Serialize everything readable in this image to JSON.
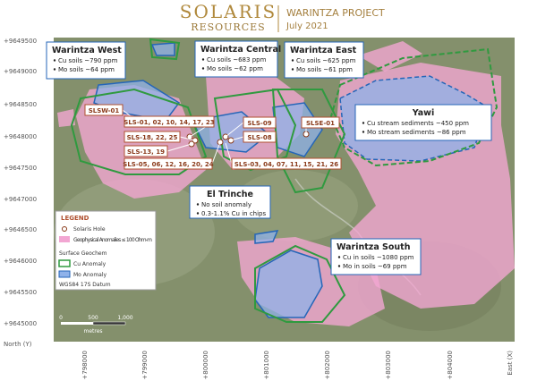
{
  "header": {
    "logo_top": "SOLARIS",
    "logo_bottom": "RESOURCES",
    "title": "WARINTZA PROJECT",
    "date": "July 2021"
  },
  "axes": {
    "y_labels": [
      "+9649500",
      "+9649000",
      "+9648500",
      "+9648000",
      "+9647500",
      "+9647000",
      "+9646500",
      "+9646000",
      "+9645500",
      "+9645000"
    ],
    "y_title": "North (Y)",
    "x_labels": [
      "+798000",
      "+799000",
      "+800000",
      "+801000",
      "+802000",
      "+803000",
      "+804000"
    ],
    "x_title": "East (X)"
  },
  "callouts": [
    {
      "title": "Warintza West",
      "lines": [
        "Cu soils ~790 ppm",
        "Mo soils ~64 ppm"
      ]
    },
    {
      "title": "Warintza Central",
      "lines": [
        "Cu soils ~683 ppm",
        "Mo soils ~62 ppm"
      ]
    },
    {
      "title": "Warintza East",
      "lines": [
        "Cu soils ~625 ppm",
        "Mo soils ~61 ppm"
      ]
    },
    {
      "title": "Yawi",
      "lines": [
        "Cu stream sediments ~450 ppm",
        "Mo stream sediments ~86 ppm"
      ]
    },
    {
      "title": "El Trinche",
      "lines": [
        "No soil anomaly",
        "0.3-1.1% Cu in chips"
      ]
    },
    {
      "title": "Warintza South",
      "lines": [
        "Cu in soils ~1080 ppm",
        "Mo in soils ~69 ppm"
      ]
    }
  ],
  "holes": [
    "SLSW-01",
    "SLS-01, 02, 10, 14, 17, 23",
    "SLS-09",
    "SLSE-01",
    "SLS-18, 22, 25",
    "SLS-08",
    "SLS-13, 19",
    "SLS-05, 06, 12, 16, 20, 24",
    "SLS-03, 04, 07, 11, 15, 21, 26"
  ],
  "legend": {
    "title": "LEGEND",
    "hole": "Solaris Hole",
    "geophysical": "Geophysical Anomalies ≤ 100 Ohm-m",
    "geochem": "Surface Geochem",
    "cu": "Cu Anomaly",
    "mo": "Mo Anomaly",
    "datum": "WGS84 17S Datum"
  },
  "scale": {
    "labels": [
      "0",
      "500",
      "1,000"
    ],
    "unit": "metres"
  }
}
